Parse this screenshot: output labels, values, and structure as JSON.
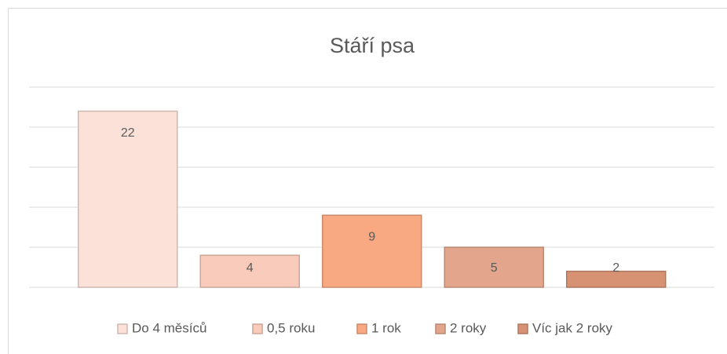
{
  "chart_data": {
    "type": "bar",
    "title": "Stáří psa",
    "categories": [
      "Do 4 měsíců",
      "0,5 roku",
      "1 rok",
      "2 roky",
      "Víc jak 2 roky"
    ],
    "values": [
      22,
      4,
      9,
      5,
      2
    ],
    "colors": [
      "#fbe1d7",
      "#f9cbbb",
      "#f8a982",
      "#e3a68c",
      "#d69273"
    ],
    "ylim": [
      0,
      25
    ],
    "yticks": [
      0,
      5,
      10,
      15,
      20,
      25
    ],
    "grid": true,
    "legend": "bottom"
  }
}
